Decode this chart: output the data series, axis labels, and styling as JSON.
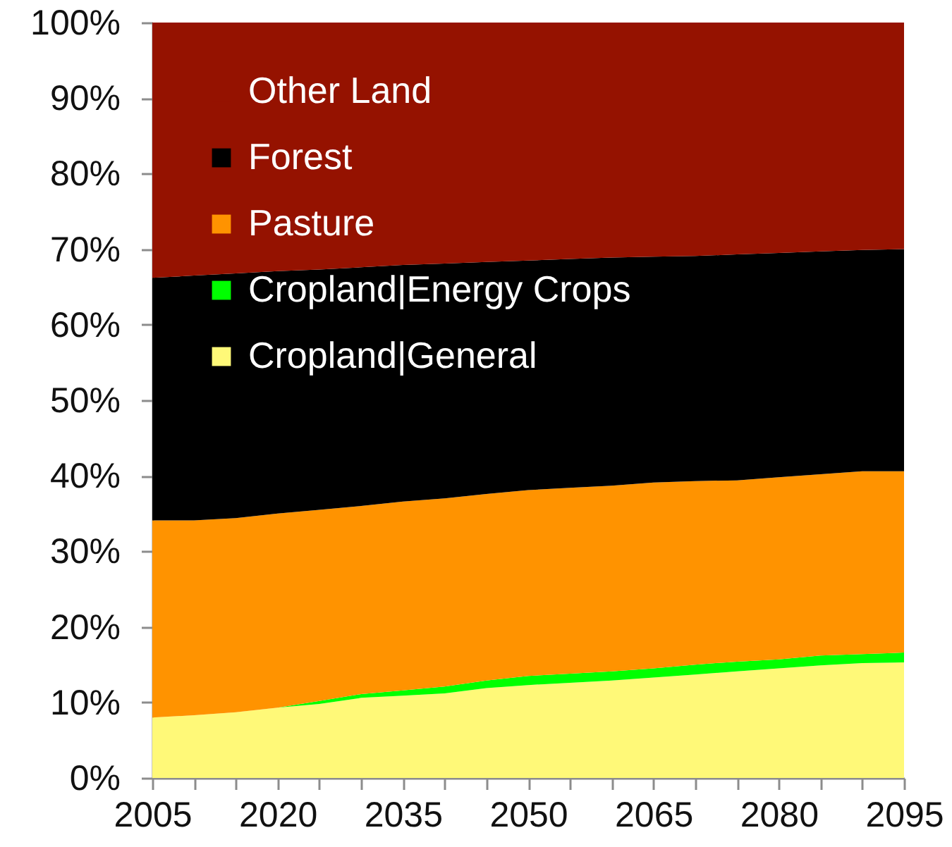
{
  "chart_data": {
    "type": "area",
    "stacked": true,
    "legend": "top left",
    "x": [
      2005,
      2010,
      2015,
      2020,
      2025,
      2030,
      2035,
      2040,
      2045,
      2050,
      2055,
      2060,
      2065,
      2070,
      2075,
      2080,
      2085,
      2090,
      2095
    ],
    "xlim": [
      2005,
      2095
    ],
    "xticks": [
      2005,
      {
        "value": 2010,
        "label": null
      },
      {
        "value": 2015,
        "label": null
      },
      2020,
      {
        "value": 2025,
        "label": null
      },
      {
        "value": 2030,
        "label": null
      },
      2035,
      {
        "value": 2040,
        "label": null
      },
      {
        "value": 2045,
        "label": null
      },
      2050,
      {
        "value": 2055,
        "label": null
      },
      {
        "value": 2060,
        "label": null
      },
      2065,
      {
        "value": 2070,
        "label": null
      },
      {
        "value": 2075,
        "label": null
      },
      2080,
      {
        "value": 2085,
        "label": null
      },
      {
        "value": 2090,
        "label": null
      },
      2095
    ],
    "ylim": [
      0,
      100
    ],
    "yticks": [
      {
        "value": 0,
        "label": "0%"
      },
      {
        "value": 10,
        "label": "10%"
      },
      {
        "value": 20,
        "label": "20%"
      },
      {
        "value": 30,
        "label": "30%"
      },
      {
        "value": 40,
        "label": "40%"
      },
      {
        "value": 50,
        "label": "50%"
      },
      {
        "value": 60,
        "label": "60%"
      },
      {
        "value": 70,
        "label": "70%"
      },
      {
        "value": 80,
        "label": "80%"
      },
      {
        "value": 90,
        "label": "90%"
      },
      {
        "value": 100,
        "label": "100%"
      }
    ],
    "series": [
      {
        "name": "Cropland|General",
        "color": "#fff978",
        "values": [
          8.0,
          8.3,
          8.7,
          9.3,
          9.8,
          10.6,
          10.9,
          11.2,
          11.9,
          12.3,
          12.6,
          12.9,
          13.3,
          13.7,
          14.1,
          14.5,
          14.9,
          15.2,
          15.3
        ]
      },
      {
        "name": "Cropland|Energy Crops",
        "color": "#00ff00",
        "values": [
          0,
          0,
          0,
          0,
          0.4,
          0.5,
          0.7,
          0.9,
          1.0,
          1.2,
          1.2,
          1.2,
          1.2,
          1.3,
          1.3,
          1.2,
          1.3,
          1.2,
          1.3
        ]
      },
      {
        "name": "Pasture",
        "color": "#ff9300",
        "values": [
          26.1,
          25.8,
          25.7,
          25.7,
          25.3,
          24.9,
          25.0,
          24.9,
          24.7,
          24.6,
          24.6,
          24.6,
          24.6,
          24.3,
          24.0,
          24.1,
          24.0,
          24.2,
          24.0
        ]
      },
      {
        "name": "Forest",
        "color": "#000000",
        "values": [
          32.1,
          32.4,
          32.4,
          32.1,
          31.8,
          31.6,
          31.3,
          31.1,
          30.7,
          30.4,
          30.3,
          30.2,
          29.9,
          29.8,
          29.9,
          29.7,
          29.5,
          29.3,
          29.4
        ]
      },
      {
        "name": "Other Land",
        "color": "#951200",
        "values": [
          33.8,
          33.5,
          33.2,
          32.9,
          32.7,
          32.4,
          32.1,
          31.9,
          31.7,
          31.5,
          31.3,
          31.1,
          31.0,
          30.9,
          30.7,
          30.5,
          30.3,
          30.1,
          30.0
        ]
      }
    ]
  }
}
